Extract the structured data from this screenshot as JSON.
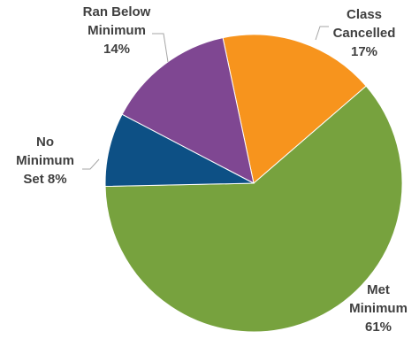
{
  "chart_data": {
    "type": "pie",
    "title": "",
    "start_category": "Class Cancelled",
    "direction": "clockwise",
    "slices": [
      {
        "label_lines": [
          "Class",
          "Cancelled"
        ],
        "percent_text": "17%",
        "value": 17,
        "color": "#F7941D"
      },
      {
        "label_lines": [
          "Met",
          "Minimum"
        ],
        "percent_text": "61%",
        "value": 61,
        "color": "#77A23E"
      },
      {
        "label_lines": [
          "No",
          "Minimum"
        ],
        "percent_text": "Set 8%",
        "value": 8,
        "color": "#0D5085"
      },
      {
        "label_lines": [
          "Ran Below",
          "Minimum"
        ],
        "percent_text": "14%",
        "value": 14,
        "color": "#7F4792"
      }
    ]
  }
}
